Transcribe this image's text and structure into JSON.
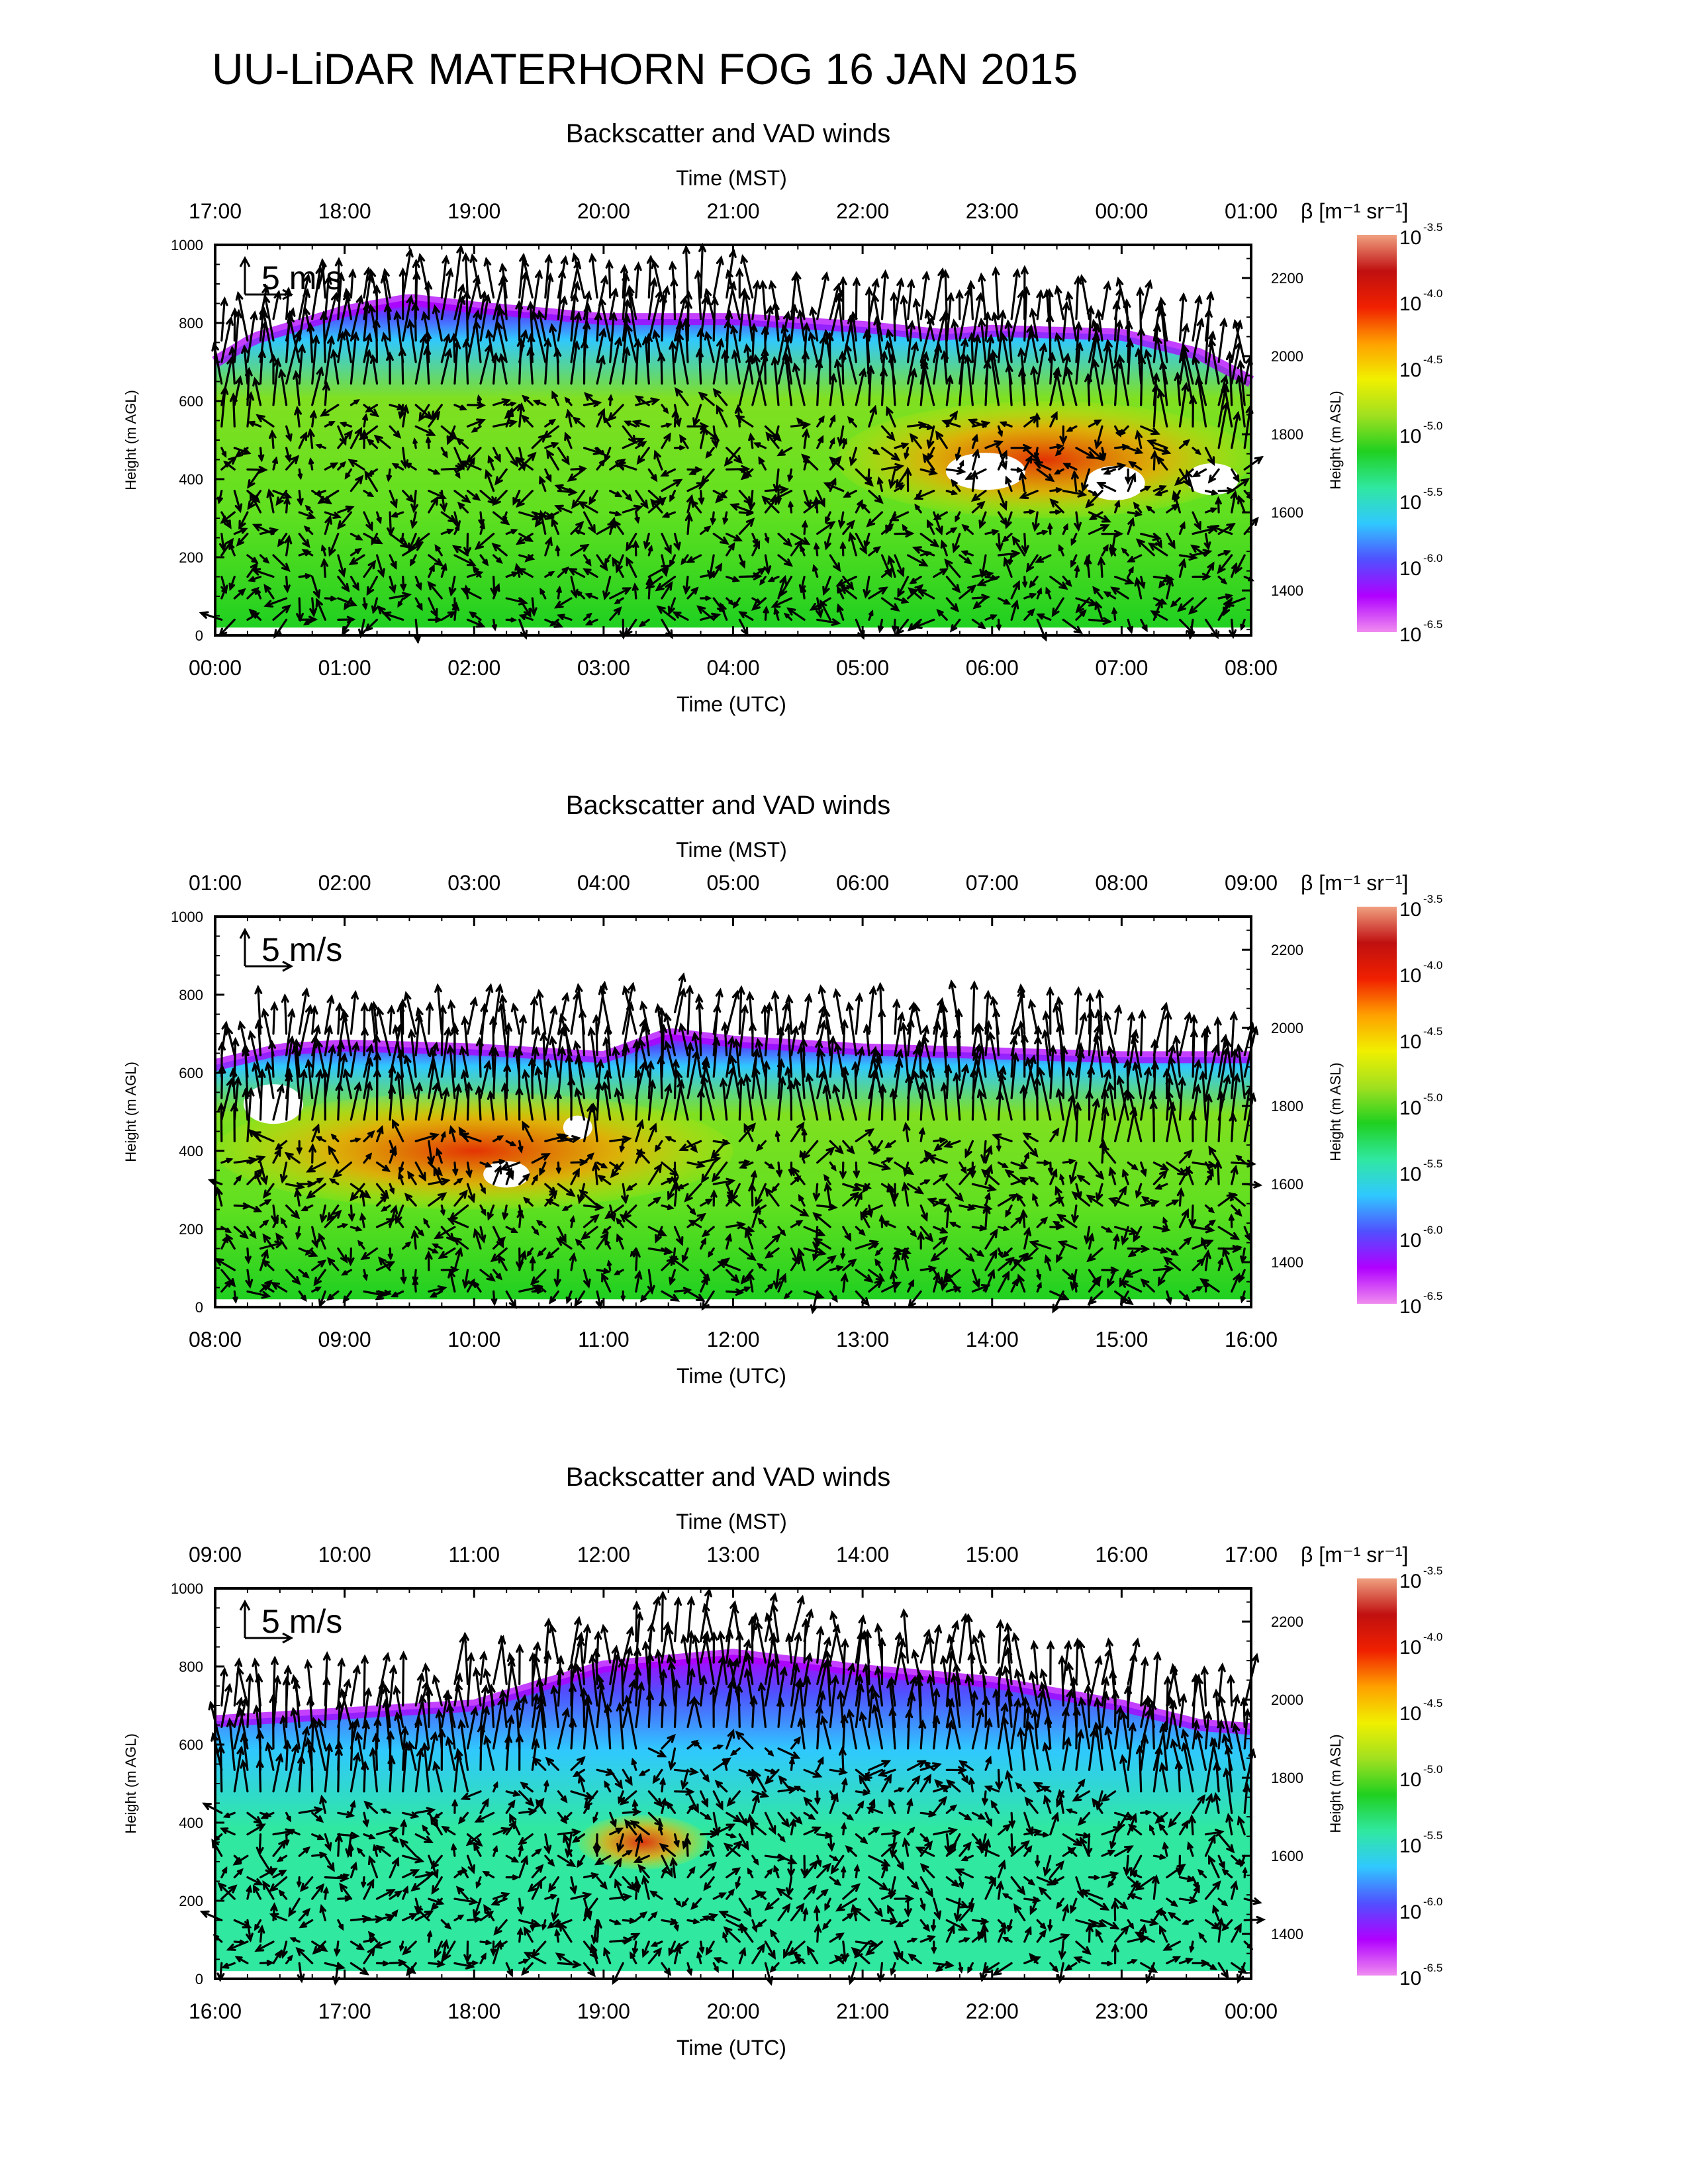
{
  "figure": {
    "title": "UU-LiDAR MATERHORN FOG  16 JAN 2015"
  },
  "colors": {
    "scale": [
      "#f08cf0",
      "#b000ff",
      "#5050ff",
      "#30c8ff",
      "#30e8a0",
      "#20d020",
      "#a0e020",
      "#f0f000",
      "#ffa000",
      "#f02000",
      "#c01010",
      "#f0a080"
    ],
    "arrow": "#000000",
    "no_data": "#ffffff"
  },
  "chart_data": [
    {
      "type": "heatmap",
      "title": "Backscatter and VAD winds",
      "top_axis_label": "Time (MST)",
      "top_ticks": [
        "17:00",
        "18:00",
        "19:00",
        "20:00",
        "21:00",
        "22:00",
        "23:00",
        "00:00",
        "01:00"
      ],
      "xlabel": "Time (UTC)",
      "x_ticks": [
        "00:00",
        "01:00",
        "02:00",
        "03:00",
        "04:00",
        "05:00",
        "06:00",
        "07:00",
        "08:00"
      ],
      "xlim_hours_utc": [
        0,
        8
      ],
      "ylabel": "Height (m AGL)",
      "y_ticks": [
        0,
        200,
        400,
        600,
        800,
        1000
      ],
      "ylim": [
        0,
        1000
      ],
      "right_ylabel": "Height (m ASL)",
      "right_ticks": [
        1400,
        1600,
        1800,
        2000,
        2200
      ],
      "scale_label": "5 m/s",
      "colorbar": {
        "label": "β [m⁻¹ sr⁻¹]",
        "base": "10",
        "exponents": [
          "-3.5",
          "-4.0",
          "-4.5",
          "-5.0",
          "-5.5",
          "-6.0",
          "-6.5"
        ]
      },
      "fog_top_m": [
        [
          0,
          700
        ],
        [
          0.3,
          760
        ],
        [
          1,
          830
        ],
        [
          1.5,
          860
        ],
        [
          2,
          840
        ],
        [
          3,
          810
        ],
        [
          4,
          810
        ],
        [
          5,
          790
        ],
        [
          5.6,
          770
        ],
        [
          6,
          780
        ],
        [
          7,
          770
        ],
        [
          7.6,
          720
        ],
        [
          8,
          650
        ]
      ],
      "aerosol_layer": {
        "kind": "enhanced-backscatter",
        "time_range_utc": [
          4.8,
          8.0
        ],
        "height_range_m": [
          300,
          600
        ]
      }
    },
    {
      "type": "heatmap",
      "title": "Backscatter and VAD winds",
      "top_axis_label": "Time (MST)",
      "top_ticks": [
        "01:00",
        "02:00",
        "03:00",
        "04:00",
        "05:00",
        "06:00",
        "07:00",
        "08:00",
        "09:00"
      ],
      "xlabel": "Time (UTC)",
      "x_ticks": [
        "08:00",
        "09:00",
        "10:00",
        "11:00",
        "12:00",
        "13:00",
        "14:00",
        "15:00",
        "16:00"
      ],
      "xlim_hours_utc": [
        8,
        16
      ],
      "ylabel": "Height (m AGL)",
      "y_ticks": [
        0,
        200,
        400,
        600,
        800,
        1000
      ],
      "ylim": [
        0,
        1000
      ],
      "right_ylabel": "Height (m ASL)",
      "right_ticks": [
        1400,
        1600,
        1800,
        2000,
        2200
      ],
      "scale_label": "5 m/s",
      "colorbar": {
        "label": "β [m⁻¹ sr⁻¹]",
        "base": "10",
        "exponents": [
          "-3.5",
          "-4.0",
          "-4.5",
          "-5.0",
          "-5.5",
          "-6.0",
          "-6.5"
        ]
      },
      "fog_top_m": [
        [
          8,
          620
        ],
        [
          8.5,
          660
        ],
        [
          9,
          670
        ],
        [
          10,
          660
        ],
        [
          11,
          640
        ],
        [
          11.5,
          700
        ],
        [
          12,
          680
        ],
        [
          13,
          660
        ],
        [
          14,
          650
        ],
        [
          15,
          640
        ],
        [
          16,
          640
        ]
      ],
      "aerosol_layer": {
        "kind": "enhanced-backscatter",
        "time_range_utc": [
          8.0,
          12.0
        ],
        "height_range_m": [
          250,
          550
        ]
      }
    },
    {
      "type": "heatmap",
      "title": "Backscatter and VAD winds",
      "top_axis_label": "Time (MST)",
      "top_ticks": [
        "09:00",
        "10:00",
        "11:00",
        "12:00",
        "13:00",
        "14:00",
        "15:00",
        "16:00",
        "17:00"
      ],
      "xlabel": "Time (UTC)",
      "x_ticks": [
        "16:00",
        "17:00",
        "18:00",
        "19:00",
        "20:00",
        "21:00",
        "22:00",
        "23:00",
        "00:00"
      ],
      "xlim_hours_utc": [
        16,
        24
      ],
      "ylabel": "Height (m AGL)",
      "y_ticks": [
        0,
        200,
        400,
        600,
        800,
        1000
      ],
      "ylim": [
        0,
        1000
      ],
      "right_ylabel": "Height (m ASL)",
      "right_ticks": [
        1400,
        1600,
        1800,
        2000,
        2200
      ],
      "scale_label": "5 m/s",
      "colorbar": {
        "label": "β [m⁻¹ sr⁻¹]",
        "base": "10",
        "exponents": [
          "-3.5",
          "-4.0",
          "-4.5",
          "-5.0",
          "-5.5",
          "-6.0",
          "-6.5"
        ]
      },
      "fog_top_m": [
        [
          16,
          660
        ],
        [
          17,
          680
        ],
        [
          18,
          700
        ],
        [
          19,
          800
        ],
        [
          20,
          830
        ],
        [
          21,
          790
        ],
        [
          22,
          760
        ],
        [
          23,
          700
        ],
        [
          23.6,
          650
        ],
        [
          24,
          640
        ]
      ],
      "aerosol_layer": {
        "kind": "enhanced-backscatter",
        "time_range_utc": [
          18.8,
          19.8
        ],
        "height_range_m": [
          280,
          420
        ]
      }
    }
  ]
}
